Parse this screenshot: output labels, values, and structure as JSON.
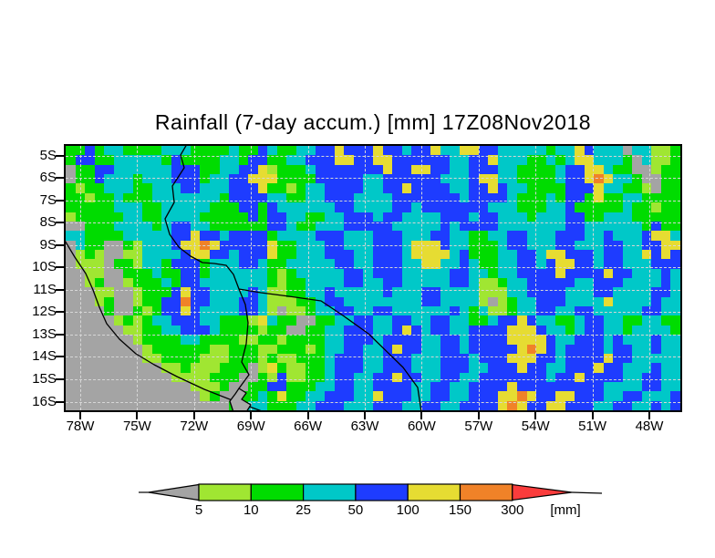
{
  "chart": {
    "title": "Rainfall (7-day accum.) [mm] 17Z08Nov2018"
  },
  "chart_data": {
    "type": "heatmap",
    "title": "Rainfall (7-day accum.) [mm] 17Z08Nov2018",
    "variable": "Rainfall (7-day accum.)",
    "unit": "mm",
    "valid_time": "17Z08Nov2018",
    "x_axis": {
      "ticks": [
        "78W",
        "75W",
        "72W",
        "69W",
        "66W",
        "63W",
        "60W",
        "57W",
        "54W",
        "51W",
        "48W"
      ]
    },
    "y_axis": {
      "ticks": [
        "5S",
        "6S",
        "7S",
        "8S",
        "9S",
        "10S",
        "11S",
        "12S",
        "13S",
        "14S",
        "15S",
        "16S"
      ]
    },
    "legend": {
      "levels": [
        "5",
        "10",
        "25",
        "50",
        "100",
        "150",
        "300"
      ],
      "unit_label": "[mm]",
      "below_color": "#a4a4a4",
      "above_color": "#fa3c3c",
      "segment_colors": [
        "#a0e632",
        "#00dc00",
        "#00c8c8",
        "#1e3cff",
        "#e6dc32",
        "#f08228"
      ]
    },
    "palette": {
      ".": "#a4a4a4",
      "l": "#a0e632",
      "g": "#00dc00",
      "c": "#00c8c8",
      "b": "#1e3cff",
      "y": "#e6dc32",
      "o": "#f08228",
      "r": "#fa3c3c"
    },
    "grid_rows": [
      "ggbgccggggcccggggcggbcggccbbybbbybbcbbyccyybbcccccgccybccc.ccllg",
      "gbbggcccccgbggggccgbbggccbbbyybbyybbbbbbccbbycccggcgcyycccg.cllg",
      ".ggbbccccccbbbggccbbylgggcbbbbbbbybbyybbccbbbccggggcbbyycgg..lgg",
      ".ggbcccgcccbbbgccbbyyyggggbbbbbccbbbbbbcccbyyccggggcbbyoyccg..gg",
      "glggcccggcccbbcccbbbygglgccbbbbccbbybbbbccbbybccggggbbbyccggl.gg",
      "gglggcgggcccccccgbbbbccggccbbbccccbbbbbbbcbbbbcgggcgbbgyggccgggg",
      "gggggcccggcccccgggbbgbccccccbbccccbbcbbbbbbbcccgggccbgggggcgglgg",
      "lgggggccggccccgggggbgbbccggccbbbcbbccccbbbcbbcccgcccbbggcccggggg",
      "..gggccccgcbbccggggggbbcggcccbbbbbcccccbcbbbbcccccccbbccccccgbgg",
      "ccggggcccccbbybbcbbbbgccccbbbcccbbbcccbbccggccbbcccbbbccbcccbyyc",
      ".cgg..glcccbyyoybbbbbyggcccbbcccbbbcyyybccgggcbbcccbbcccbbccbbyy",
      ".lgl..llccccbyybbcbbbyggcccbbbccbbbcyyyycbgggccbbcyybbbcbbccybyb",
      ".lll.gglccgbbbgcccbbcggcccccbbccbbbccyyccbcggccbbcbyybbcbbcccbbb",
      "..ll..gggcggbbgccccccglgcccccbbcbbbcccccbbccgccbbbbybbbbybbcccbc",
      "..lg..lgggcgbbcccccccglggccccbbccbbcccccbbcllgccbbbbbccbbbccccbc",
      "...ll..lgggbybbccccbcllggccbcccccbcccbbcccclllccbbbbcccbbccccbbc",
      "...lg..lggbbobbcccbbclllggcbbccccccccbbccccl.lgccbbbccccyccccbcc",
      "....g..glgbbybccccbbcl.llgccbbccbbccccccbcgcllgccbbccbbcccccbbcc",
      ".....lglgccbbbccggglycgg..ggccbbccbbccbbccggcbbybccggcbbccggccgg",
      "......llggccbbbcgggglgg..ggccbbbccbybcbbccbbbbyyybccgcbbccgccccg",
      ".......lggggccggggllgglggggccbbbcbbbbccbbcbbbbyyyybccbbbcbcccbcc",
      "........lggggggllggmllggglgccbbccbybbccbbcbbbbbyoybcbbbbcbbccbcc",
      "........llgggglllggglgllgggcbbbccbbbcccbbbcbbbyyybbcbbbbybbccccc",
      "..........llglllggg.lygllggcbbbccbbbcccbbbccbbbybbccbbbybbcccbcc",
      "...........llllggg..glbllggcbbccbbybbccbbccbbbbbbbcbbybbbbccbbcc",
      ".............lllg..ggbbgggccbbccbbbbccbbccbbbbybbbbbbbbbccccbbcc",
      "..............lg..ggcgyggccbbbccybbbccbbccbbbyyoybbyybbbccbbcccb",
      ".................ggccgggccbbbcccbbbccbbccbbbbyoybbyybbbccbbccbcb"
    ]
  }
}
